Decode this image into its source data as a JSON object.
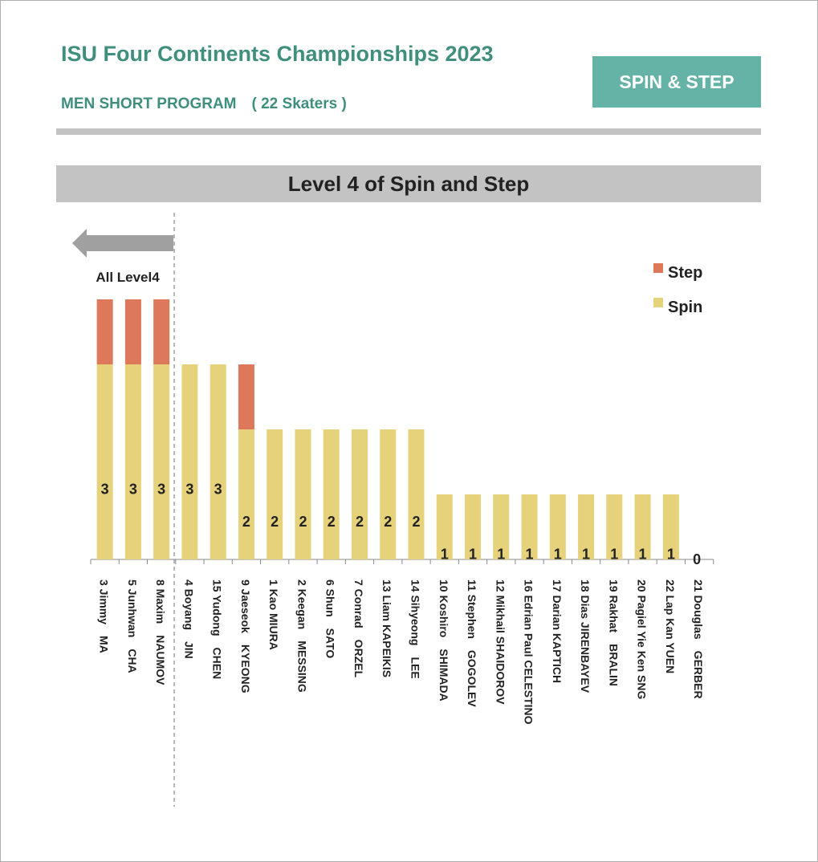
{
  "header": {
    "title": "ISU Four Continents Championships 2023",
    "subtitle": "MEN SHORT PROGRAM　( 22 Skaters )",
    "badge": "SPIN & STEP"
  },
  "colors": {
    "spin": "#e5d27a",
    "step": "#de785a",
    "accent": "#3f8e7e",
    "badge_bg": "#64b3a6",
    "band": "#c3c3c3"
  },
  "chart_data": {
    "type": "bar",
    "stacked": true,
    "title": "Level 4 of Spin and Step",
    "annotation": "All Level4",
    "legend_position": "top-right",
    "categories": [
      "3 Jimmy　MA",
      "5 Junhwan　CHA",
      "8 Maxim　NAUMOV",
      "4 Boyang　JIN",
      "15 Yudong　CHEN",
      "9 Jaeseok　KYEONG",
      "1 Kao MIURA",
      "2 Keegan　MESSING",
      "6 Shun　SATO",
      "7 Conrad　ORZEL",
      "13 Liam KAPEIKIS",
      "14 Sihyeong　LEE",
      "10 Koshiro　SHIMADA",
      "11 Stephen　GOGOLEV",
      "12 Mikhail SHAIDOROV",
      "16 Edrian Paul CELESTINO",
      "17 Darian KAPTICH",
      "18 Dias JIRENBAYEV",
      "19 Rakhat　BRALIN",
      "20 Pagiel Yie Ken SNG",
      "22 Lap Kan YUEN",
      "21 Douglas　GERBER"
    ],
    "series": [
      {
        "name": "Spin",
        "values": [
          3,
          3,
          3,
          3,
          3,
          2,
          2,
          2,
          2,
          2,
          2,
          2,
          1,
          1,
          1,
          1,
          1,
          1,
          1,
          1,
          1,
          0
        ]
      },
      {
        "name": "Step",
        "values": [
          1,
          1,
          1,
          0,
          0,
          1,
          0,
          0,
          0,
          0,
          0,
          0,
          0,
          0,
          0,
          0,
          0,
          0,
          0,
          0,
          0,
          0
        ]
      }
    ],
    "ylim": [
      0,
      4
    ],
    "xlabel": "",
    "ylabel": ""
  }
}
